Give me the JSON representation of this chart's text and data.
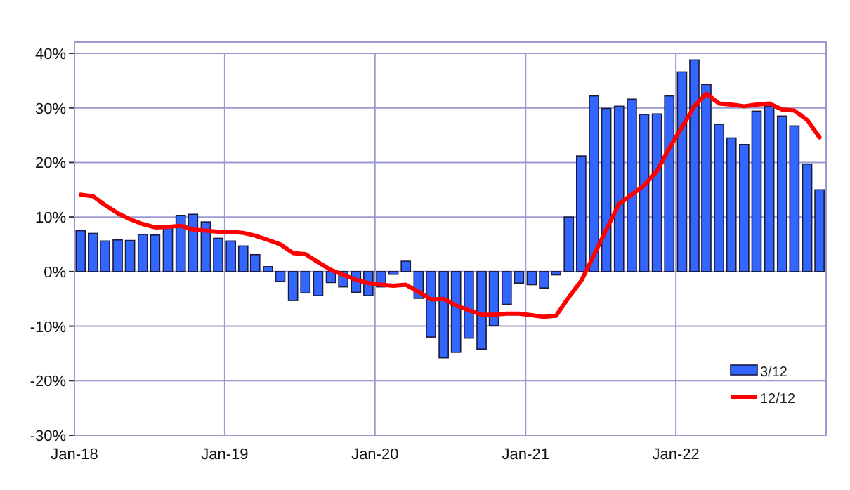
{
  "chart_data": {
    "type": "bar",
    "x": [
      "2018-01-16",
      "2018-02-15",
      "2018-03-16",
      "2018-04-16",
      "2018-05-16",
      "2018-06-16",
      "2018-07-16",
      "2018-08-16",
      "2018-09-16",
      "2018-10-16",
      "2018-11-16",
      "2018-12-16",
      "2019-01-16",
      "2019-02-15",
      "2019-03-16",
      "2019-04-16",
      "2019-05-16",
      "2019-06-16",
      "2019-07-16",
      "2019-08-16",
      "2019-09-16",
      "2019-10-16",
      "2019-11-16",
      "2019-12-16",
      "2020-01-16",
      "2020-02-15",
      "2020-03-16",
      "2020-04-16",
      "2020-05-16",
      "2020-06-16",
      "2020-07-16",
      "2020-08-16",
      "2020-09-16",
      "2020-10-16",
      "2020-11-16",
      "2020-12-16",
      "2021-01-16",
      "2021-02-15",
      "2021-03-16",
      "2021-04-16",
      "2021-05-16",
      "2021-06-16",
      "2021-07-16",
      "2021-08-16",
      "2021-09-16",
      "2021-10-16",
      "2021-11-16",
      "2021-12-16",
      "2022-01-16",
      "2022-02-15",
      "2022-03-16",
      "2022-04-16",
      "2022-05-16",
      "2022-06-16",
      "2022-07-16",
      "2022-08-16",
      "2022-09-16",
      "2022-10-16",
      "2022-11-16",
      "2022-12-16"
    ],
    "series": [
      {
        "name": "3/12",
        "color": "#3366ff",
        "values": [
          7.5,
          7.0,
          5.6,
          5.8,
          5.7,
          6.8,
          6.7,
          8.5,
          10.3,
          10.5,
          9.1,
          6.1,
          5.6,
          4.7,
          3.1,
          0.9,
          -1.8,
          -5.3,
          -3.9,
          -4.4,
          -2.0,
          -2.8,
          -3.8,
          -4.4,
          -2.8,
          -0.5,
          1.9,
          -4.9,
          -12.0,
          -15.8,
          -14.8,
          -12.2,
          -14.2,
          -9.9,
          -6.0,
          -2.1,
          -2.4,
          -3.0,
          -0.6,
          10.0,
          21.2,
          32.2,
          29.9,
          30.3,
          31.6,
          28.8,
          28.9,
          32.2,
          36.6,
          38.8,
          34.3,
          27.0,
          24.5,
          23.3,
          29.4,
          30.3,
          28.5,
          26.7,
          19.7,
          15.0
        ]
      },
      {
        "name": "12/12",
        "type": "line",
        "color": "#ff0000",
        "values": [
          14.1,
          13.8,
          12.2,
          10.7,
          9.6,
          8.7,
          8.1,
          8.2,
          8.4,
          7.7,
          7.5,
          7.3,
          7.3,
          7.1,
          6.6,
          5.8,
          5.0,
          3.4,
          3.2,
          1.7,
          0.3,
          -0.6,
          -1.5,
          -2.1,
          -2.4,
          -2.6,
          -2.4,
          -3.7,
          -5.1,
          -5.0,
          -6.2,
          -7.1,
          -7.9,
          -7.9,
          -7.7,
          -7.7,
          -8.0,
          -8.3,
          -8.1,
          -4.7,
          -1.7,
          3.0,
          7.7,
          12.4,
          14.1,
          15.8,
          18.4,
          22.6,
          26.5,
          30.3,
          32.6,
          30.8,
          30.6,
          30.3,
          30.6,
          30.8,
          29.7,
          29.5,
          27.8,
          24.6
        ]
      }
    ],
    "xlim": [
      "2018-01",
      "2023-01"
    ],
    "xticks": [
      {
        "value": "2018-01",
        "label": "Jan-18"
      },
      {
        "value": "2019-01",
        "label": "Jan-19"
      },
      {
        "value": "2020-01",
        "label": "Jan-20"
      },
      {
        "value": "2021-01",
        "label": "Jan-21"
      },
      {
        "value": "2022-01",
        "label": "Jan-22"
      },
      {
        "value": "2023-01",
        "label": null
      }
    ],
    "ylim": [
      -30,
      40
    ],
    "yticks": [
      {
        "value": -30,
        "label": "-30%"
      },
      {
        "value": -20,
        "label": "-20%"
      },
      {
        "value": -10,
        "label": "-10%"
      },
      {
        "value": 0,
        "label": "0%"
      },
      {
        "value": 10,
        "label": "10%"
      },
      {
        "value": 20,
        "label": "20%"
      },
      {
        "value": 30,
        "label": "30%"
      },
      {
        "value": 40,
        "label": "40%"
      }
    ],
    "grid": true,
    "legend": "bottom right",
    "line_style": "solid",
    "marker": "none"
  }
}
